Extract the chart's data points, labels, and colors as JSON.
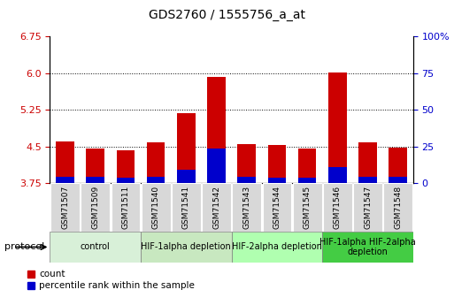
{
  "title": "GDS2760 / 1555756_a_at",
  "samples": [
    "GSM71507",
    "GSM71509",
    "GSM71511",
    "GSM71540",
    "GSM71541",
    "GSM71542",
    "GSM71543",
    "GSM71544",
    "GSM71545",
    "GSM71546",
    "GSM71547",
    "GSM71548"
  ],
  "red_values": [
    4.6,
    4.45,
    4.42,
    4.58,
    5.18,
    5.93,
    4.55,
    4.52,
    4.45,
    6.02,
    4.58,
    4.48
  ],
  "blue_values": [
    3.88,
    3.87,
    3.86,
    3.88,
    4.02,
    4.46,
    3.87,
    3.86,
    3.86,
    4.07,
    3.87,
    3.87
  ],
  "y_min": 3.75,
  "y_max": 6.75,
  "y_ticks_left": [
    3.75,
    4.5,
    5.25,
    6.0,
    6.75
  ],
  "y_ticks_right": [
    0,
    25,
    50,
    75,
    100
  ],
  "y_ticks_right_labels": [
    "0",
    "25",
    "50",
    "75",
    "100%"
  ],
  "grid_lines": [
    4.5,
    5.25,
    6.0
  ],
  "bar_width": 0.6,
  "bar_color_red": "#cc0000",
  "bar_color_blue": "#0000cc",
  "groups": [
    {
      "label": "control",
      "start": 0,
      "end": 2,
      "color": "#d8f0d8"
    },
    {
      "label": "HIF-1alpha depletion",
      "start": 3,
      "end": 5,
      "color": "#c8e8c0"
    },
    {
      "label": "HIF-2alpha depletion",
      "start": 6,
      "end": 8,
      "color": "#b0ffb0"
    },
    {
      "label": "HIF-1alpha HIF-2alpha\ndepletion",
      "start": 9,
      "end": 11,
      "color": "#44cc44"
    }
  ],
  "legend_red": "count",
  "legend_blue": "percentile rank within the sample",
  "protocol_label": "protocol",
  "axis_label_color_left": "#cc0000",
  "axis_label_color_right": "#0000cc",
  "tick_bg_color": "#d8d8d8",
  "title_fontsize": 10,
  "bar_label_fontsize": 6.5,
  "group_label_fontsize": 7,
  "legend_fontsize": 7.5
}
